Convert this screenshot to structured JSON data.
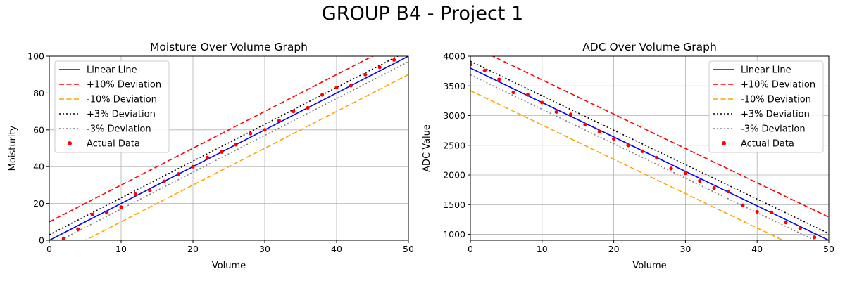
{
  "figure": {
    "suptitle": "GROUP B4 - Project 1"
  },
  "chart_data": [
    {
      "type": "line",
      "title": "Moisture Over Volume Graph",
      "xlabel": "Volume",
      "ylabel": "Moisturity",
      "xlim": [
        0,
        50
      ],
      "ylim": [
        0,
        100
      ],
      "xticks": [
        0,
        10,
        20,
        30,
        40,
        50
      ],
      "yticks": [
        0,
        20,
        40,
        60,
        80,
        100
      ],
      "grid": true,
      "legend_position": "top-left",
      "series": [
        {
          "name": "Linear Line",
          "kind": "line",
          "color": "#0000ff",
          "dash": "solid",
          "x": [
            0,
            50
          ],
          "y": [
            0,
            100
          ]
        },
        {
          "name": "+10% Deviation",
          "kind": "line",
          "color": "#ff0000",
          "dash": "dashed",
          "x": [
            0,
            50
          ],
          "y": [
            10,
            110
          ]
        },
        {
          "name": "-10% Deviation",
          "kind": "line",
          "color": "#ffa500",
          "dash": "dashed",
          "x": [
            0,
            50
          ],
          "y": [
            -10,
            90
          ]
        },
        {
          "name": "+3% Deviation",
          "kind": "line",
          "color": "#000000",
          "dash": "dotted",
          "x": [
            0,
            50
          ],
          "y": [
            3,
            103
          ]
        },
        {
          "name": "-3% Deviation",
          "kind": "line",
          "color": "#808080",
          "dash": "dotted",
          "x": [
            0,
            50
          ],
          "y": [
            -3,
            97
          ]
        },
        {
          "name": "Actual Data",
          "kind": "scatter",
          "color": "#ff0000",
          "x": [
            2,
            4,
            6,
            8,
            10,
            12,
            14,
            16,
            18,
            20,
            22,
            24,
            26,
            28,
            30,
            32,
            34,
            36,
            38,
            40,
            42,
            44,
            46,
            48
          ],
          "y": [
            1,
            6,
            14,
            15,
            18,
            25,
            27,
            32,
            36,
            40,
            45,
            48,
            52,
            58,
            60,
            65,
            70,
            72,
            79,
            83,
            84,
            90,
            94,
            98
          ]
        }
      ]
    },
    {
      "type": "line",
      "title": "ADC Over Volume Graph",
      "xlabel": "Volume",
      "ylabel": "ADC Value",
      "xlim": [
        0,
        50
      ],
      "ylim": [
        900,
        4000
      ],
      "xticks": [
        0,
        10,
        20,
        30,
        40,
        50
      ],
      "yticks": [
        1000,
        1500,
        2000,
        2500,
        3000,
        3500,
        4000
      ],
      "grid": true,
      "legend_position": "top-right",
      "series": [
        {
          "name": "Linear Line",
          "kind": "line",
          "color": "#0000ff",
          "dash": "solid",
          "x": [
            0,
            50
          ],
          "y": [
            3800,
            900
          ]
        },
        {
          "name": "+10% Deviation",
          "kind": "line",
          "color": "#ff0000",
          "dash": "dashed",
          "x": [
            0,
            50
          ],
          "y": [
            4180,
            1290
          ]
        },
        {
          "name": "-10% Deviation",
          "kind": "line",
          "color": "#ffa500",
          "dash": "dashed",
          "x": [
            0,
            50
          ],
          "y": [
            3420,
            530
          ]
        },
        {
          "name": "+3% Deviation",
          "kind": "line",
          "color": "#000000",
          "dash": "dotted",
          "x": [
            0,
            50
          ],
          "y": [
            3914,
            1014
          ]
        },
        {
          "name": "-3% Deviation",
          "kind": "line",
          "color": "#808080",
          "dash": "dotted",
          "x": [
            0,
            50
          ],
          "y": [
            3686,
            786
          ]
        },
        {
          "name": "Actual Data",
          "kind": "scatter",
          "color": "#ff0000",
          "x": [
            0,
            2,
            4,
            6,
            8,
            10,
            12,
            14,
            16,
            18,
            20,
            22,
            24,
            26,
            28,
            30,
            32,
            34,
            36,
            38,
            40,
            42,
            44,
            46,
            48
          ],
          "y": [
            3860,
            3760,
            3610,
            3390,
            3350,
            3220,
            3060,
            3020,
            2850,
            2730,
            2610,
            2500,
            2400,
            2290,
            2110,
            2030,
            1900,
            1780,
            1720,
            1490,
            1380,
            1370,
            1200,
            1100,
            950
          ]
        }
      ]
    }
  ]
}
